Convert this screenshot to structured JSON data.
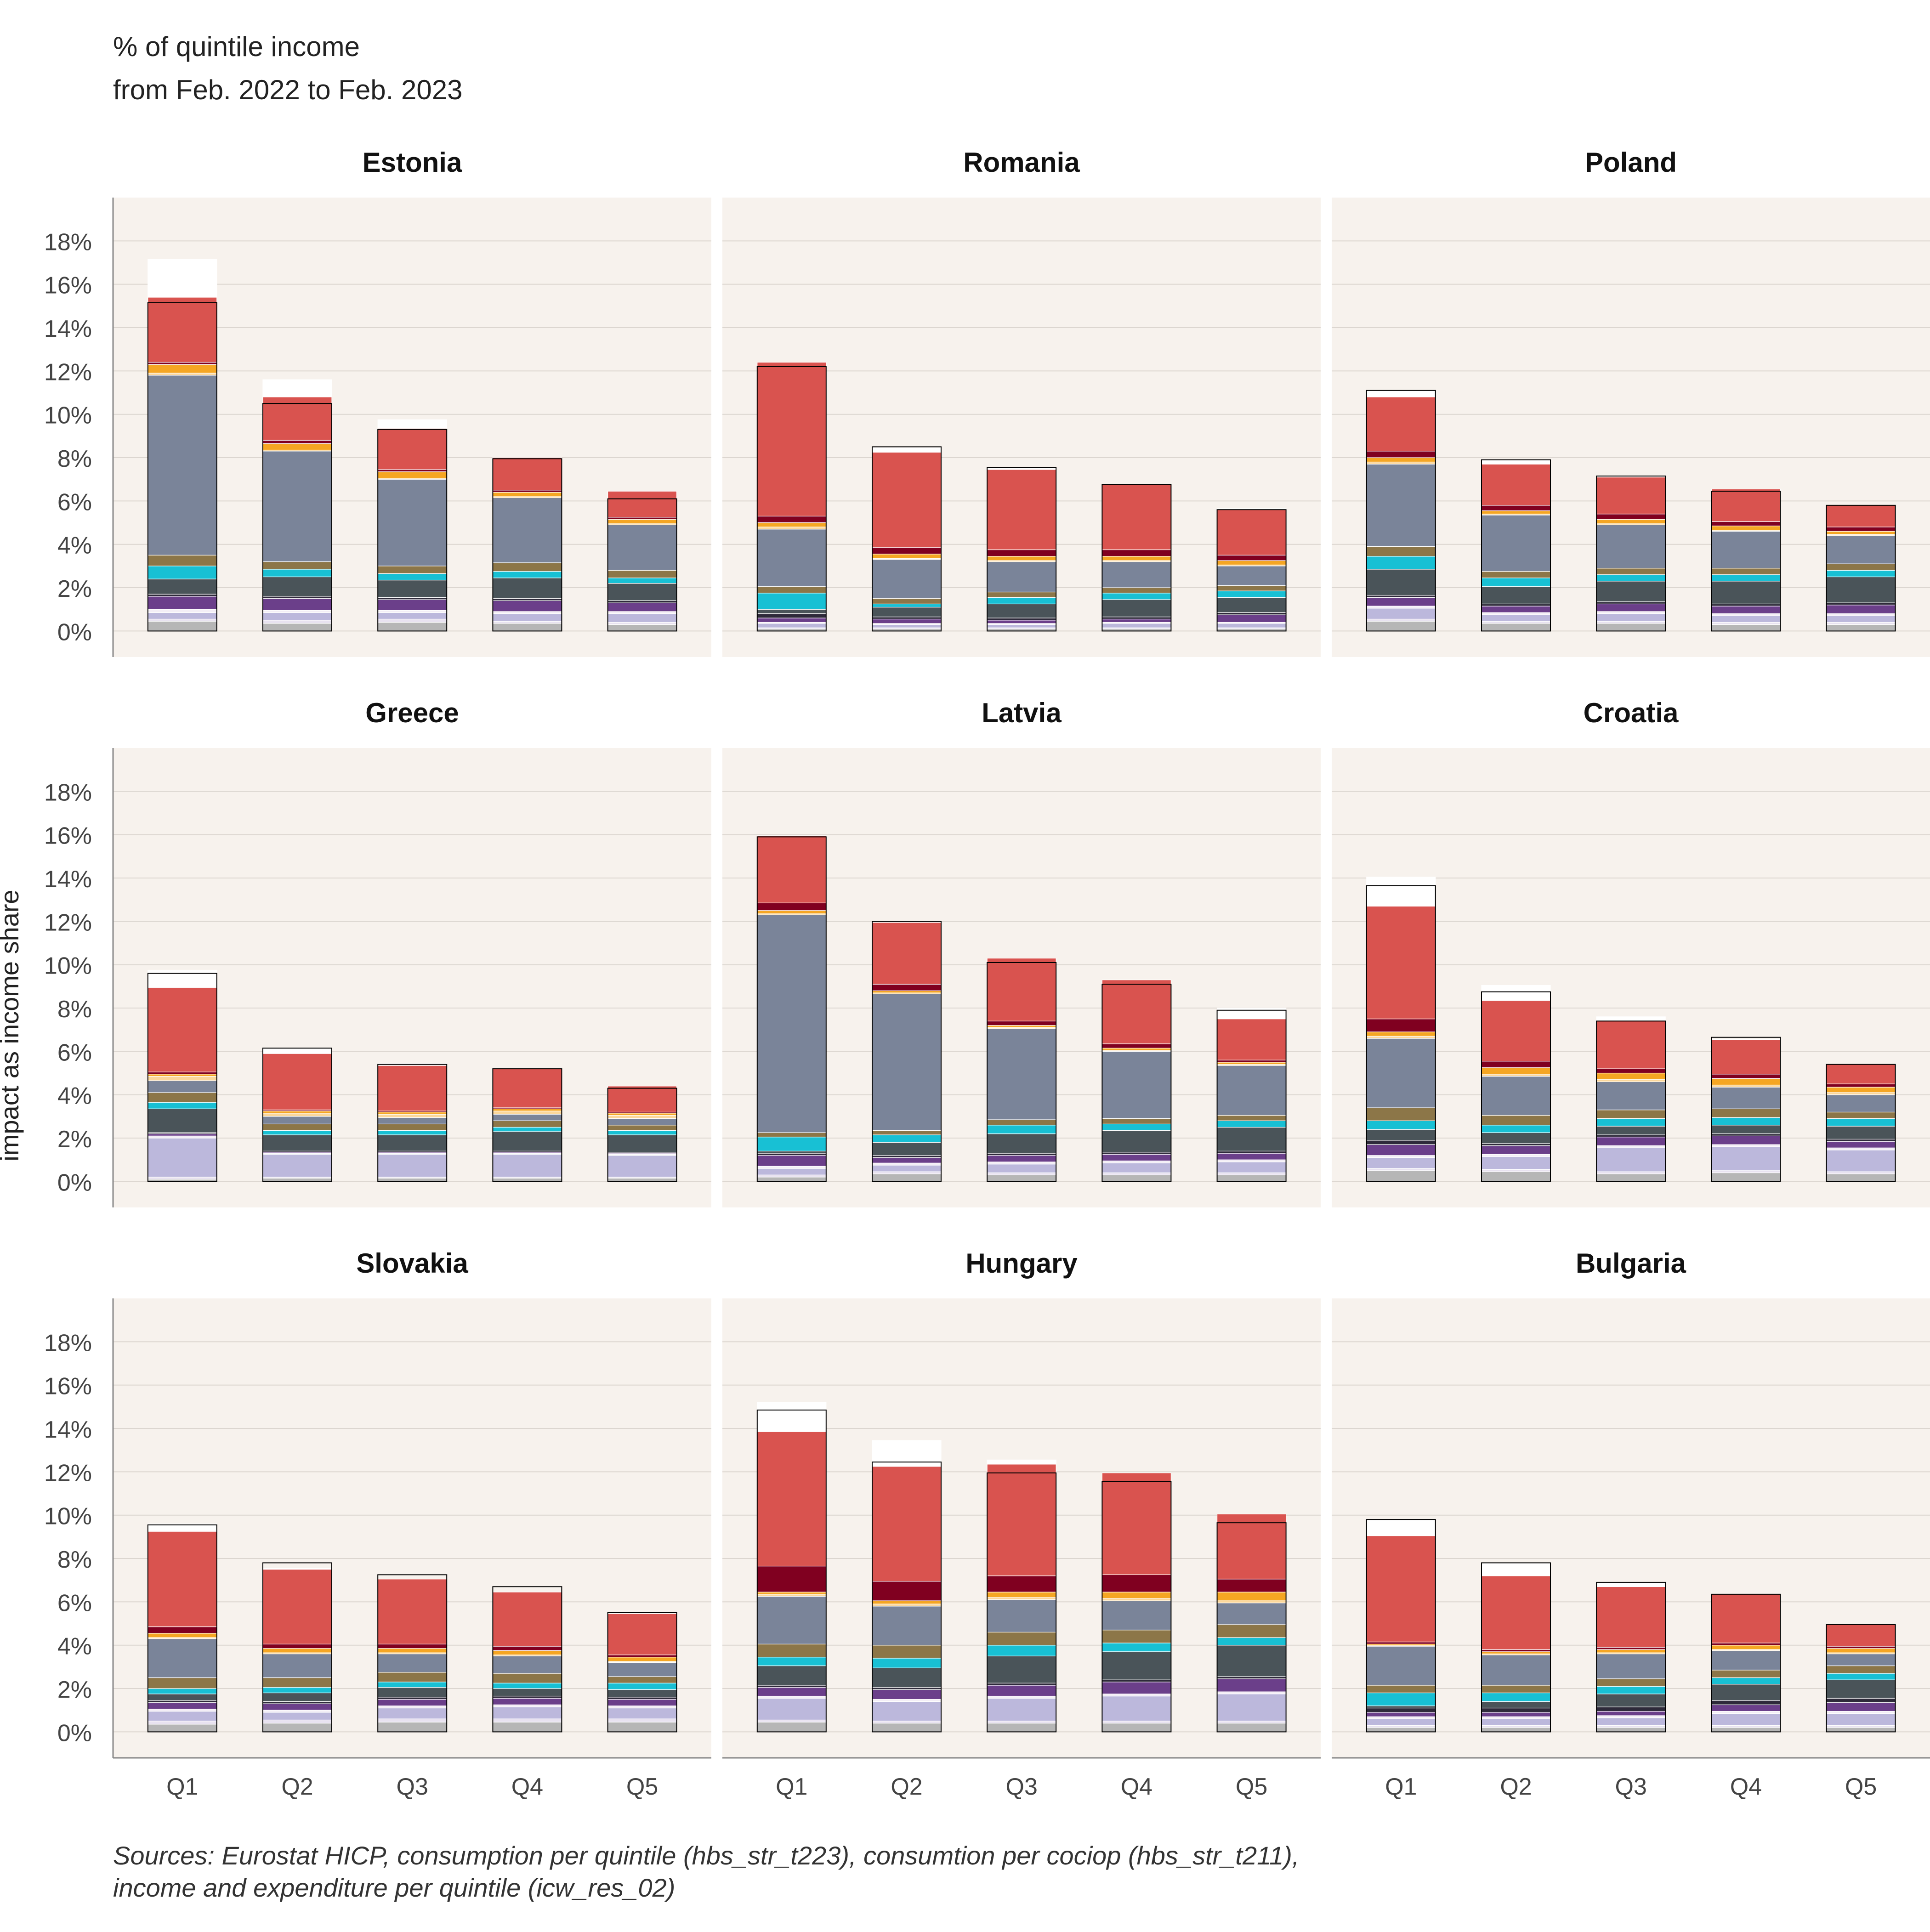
{
  "header": {
    "title_line1": "% of quintile income",
    "title_line2": "from Feb. 2022 to Feb. 2023"
  },
  "yaxis_label": "impact as income share",
  "source_line1": "Sources: Eurostat HICP, consumption per quintile (hbs_str_t223), consumtion per cociop (hbs_str_t211),",
  "source_line2": "income and expenditure per quintile (icw_res_02)",
  "colors": {
    "panel_bg": "#f7f2ed",
    "grid": "#dcd6d0",
    "segments": [
      "#b6b6b6",
      "#e8e2f0",
      "#bcb8dc",
      "#f3eef6",
      "#6b3f8a",
      "#2e2a3a",
      "#4a5459",
      "#18c0d4",
      "#8c7648",
      "#7a8499",
      "#fbd79b",
      "#f5a623",
      "#800020",
      "#d9534f",
      "#ffffff"
    ]
  },
  "chart_data": {
    "type": "bar",
    "layout": "small-multiples 3x3, stacked bars",
    "categories": [
      "Q1",
      "Q2",
      "Q3",
      "Q4",
      "Q5"
    ],
    "ylim": [
      -1.2,
      20
    ],
    "yticks": [
      0,
      2,
      4,
      6,
      8,
      10,
      12,
      14,
      16,
      18
    ],
    "ytick_labels": [
      "0%",
      "2%",
      "4%",
      "6%",
      "8%",
      "10%",
      "12%",
      "14%",
      "16%",
      "18%"
    ],
    "ylabel": "impact as income share",
    "panels": [
      {
        "name": "Estonia",
        "bars": [
          {
            "segments": [
              0.45,
              0.1,
              0.3,
              0.15,
              0.6,
              0.1,
              0.7,
              0.6,
              0.5,
              8.3,
              0.1,
              0.4,
              0.1,
              3.0,
              1.75
            ],
            "total": 15.15
          },
          {
            "segments": [
              0.35,
              0.15,
              0.35,
              0.1,
              0.55,
              0.1,
              0.9,
              0.35,
              0.35,
              5.1,
              0.05,
              0.3,
              0.15,
              2.0,
              0.8
            ],
            "total": 10.5
          },
          {
            "segments": [
              0.4,
              0.15,
              0.3,
              0.1,
              0.5,
              0.1,
              0.8,
              0.3,
              0.35,
              4.0,
              0.05,
              0.3,
              0.1,
              1.9,
              0.4
            ],
            "total": 9.3
          },
          {
            "segments": [
              0.35,
              0.1,
              0.35,
              0.1,
              0.5,
              0.1,
              0.95,
              0.3,
              0.4,
              3.0,
              0.05,
              0.2,
              0.1,
              1.5,
              0.0
            ],
            "total": 7.95
          },
          {
            "segments": [
              0.3,
              0.1,
              0.4,
              0.1,
              0.4,
              0.1,
              0.8,
              0.25,
              0.35,
              2.1,
              0.05,
              0.2,
              0.1,
              1.2,
              0.0
            ],
            "total": 6.1
          }
        ]
      },
      {
        "name": "Romania",
        "bars": [
          {
            "segments": [
              0.1,
              0.05,
              0.2,
              0.05,
              0.2,
              0.2,
              0.2,
              0.75,
              0.3,
              2.65,
              0.1,
              0.2,
              0.3,
              7.1,
              0.0
            ],
            "total": 12.2
          },
          {
            "segments": [
              0.1,
              0.05,
              0.15,
              0.05,
              0.2,
              0.1,
              0.45,
              0.15,
              0.25,
              1.8,
              0.05,
              0.2,
              0.3,
              4.4,
              0.2
            ],
            "total": 8.5
          },
          {
            "segments": [
              0.1,
              0.05,
              0.15,
              0.05,
              0.15,
              0.1,
              0.65,
              0.3,
              0.25,
              1.4,
              0.05,
              0.2,
              0.3,
              3.7,
              0.1
            ],
            "total": 7.55
          },
          {
            "segments": [
              0.1,
              0.05,
              0.2,
              0.05,
              0.15,
              0.1,
              0.8,
              0.3,
              0.25,
              1.2,
              0.05,
              0.2,
              0.3,
              3.0,
              0.0
            ],
            "total": 6.75
          },
          {
            "segments": [
              0.1,
              0.05,
              0.2,
              0.05,
              0.35,
              0.1,
              0.7,
              0.3,
              0.25,
              0.9,
              0.05,
              0.2,
              0.25,
              2.1,
              0.05
            ],
            "total": 5.6
          }
        ]
      },
      {
        "name": "Poland",
        "bars": [
          {
            "segments": [
              0.45,
              0.1,
              0.5,
              0.1,
              0.4,
              0.1,
              1.2,
              0.6,
              0.45,
              3.8,
              0.1,
              0.2,
              0.3,
              2.5,
              0.3
            ],
            "total": 11.1
          },
          {
            "segments": [
              0.35,
              0.1,
              0.3,
              0.1,
              0.3,
              0.1,
              0.8,
              0.4,
              0.3,
              2.6,
              0.05,
              0.15,
              0.25,
              1.9,
              0.2
            ],
            "total": 7.9
          },
          {
            "segments": [
              0.35,
              0.1,
              0.35,
              0.1,
              0.35,
              0.1,
              0.95,
              0.3,
              0.3,
              2.0,
              0.05,
              0.2,
              0.25,
              1.7,
              0.05
            ],
            "total": 7.15
          },
          {
            "segments": [
              0.3,
              0.1,
              0.3,
              0.1,
              0.35,
              0.1,
              1.05,
              0.3,
              0.3,
              1.7,
              0.05,
              0.2,
              0.2,
              1.5,
              0.0
            ],
            "total": 6.45
          },
          {
            "segments": [
              0.3,
              0.1,
              0.3,
              0.1,
              0.4,
              0.1,
              1.2,
              0.3,
              0.3,
              1.3,
              0.05,
              0.15,
              0.2,
              1.0,
              0.0
            ],
            "total": 5.8
          }
        ]
      },
      {
        "name": "Greece",
        "bars": [
          {
            "segments": [
              0.1,
              0.1,
              1.8,
              0.1,
              0.1,
              0.05,
              1.1,
              0.3,
              0.45,
              0.55,
              0.2,
              0.1,
              0.1,
              3.9,
              0.8
            ],
            "total": 9.6
          },
          {
            "segments": [
              0.15,
              0.05,
              1.05,
              0.05,
              0.05,
              0.05,
              0.75,
              0.2,
              0.3,
              0.35,
              0.15,
              0.1,
              0.05,
              2.6,
              0.25
            ],
            "total": 6.15
          },
          {
            "segments": [
              0.15,
              0.05,
              1.05,
              0.05,
              0.05,
              0.05,
              0.75,
              0.2,
              0.3,
              0.3,
              0.15,
              0.1,
              0.05,
              2.1,
              0.1
            ],
            "total": 5.4
          },
          {
            "segments": [
              0.15,
              0.05,
              1.05,
              0.05,
              0.05,
              0.05,
              0.9,
              0.2,
              0.3,
              0.3,
              0.15,
              0.1,
              0.05,
              1.8,
              0.0
            ],
            "total": 5.2
          },
          {
            "segments": [
              0.15,
              0.05,
              1.0,
              0.05,
              0.05,
              0.05,
              0.8,
              0.2,
              0.25,
              0.3,
              0.15,
              0.1,
              0.05,
              1.2,
              0.0
            ],
            "total": 4.3
          }
        ]
      },
      {
        "name": "Latvia",
        "bars": [
          {
            "segments": [
              0.2,
              0.1,
              0.3,
              0.1,
              0.5,
              0.1,
              0.1,
              0.65,
              0.2,
              10.05,
              0.05,
              0.15,
              0.35,
              3.1,
              0.0
            ],
            "total": 15.9
          },
          {
            "segments": [
              0.35,
              0.1,
              0.3,
              0.1,
              0.25,
              0.1,
              0.6,
              0.35,
              0.2,
              6.3,
              0.05,
              0.1,
              0.3,
              2.85,
              0.0
            ],
            "total": 12.0
          },
          {
            "segments": [
              0.3,
              0.1,
              0.4,
              0.1,
              0.3,
              0.1,
              0.9,
              0.4,
              0.25,
              4.2,
              0.05,
              0.1,
              0.2,
              2.9,
              0.0
            ],
            "total": 10.1
          },
          {
            "segments": [
              0.3,
              0.1,
              0.45,
              0.1,
              0.3,
              0.1,
              1.0,
              0.3,
              0.25,
              3.1,
              0.05,
              0.1,
              0.2,
              2.95,
              0.0
            ],
            "total": 9.1
          },
          {
            "segments": [
              0.3,
              0.1,
              0.5,
              0.1,
              0.3,
              0.1,
              1.1,
              0.3,
              0.25,
              2.3,
              0.05,
              0.1,
              0.1,
              1.9,
              0.5
            ],
            "total": 7.9
          }
        ]
      },
      {
        "name": "Croatia",
        "bars": [
          {
            "segments": [
              0.5,
              0.1,
              0.5,
              0.1,
              0.5,
              0.2,
              0.5,
              0.4,
              0.6,
              3.2,
              0.1,
              0.2,
              0.6,
              5.2,
              1.35
            ],
            "total": 13.65
          },
          {
            "segments": [
              0.45,
              0.1,
              0.6,
              0.1,
              0.4,
              0.1,
              0.5,
              0.35,
              0.45,
              1.8,
              0.1,
              0.3,
              0.3,
              2.8,
              0.7
            ],
            "total": 8.75
          },
          {
            "segments": [
              0.35,
              0.1,
              1.1,
              0.1,
              0.4,
              0.1,
              0.4,
              0.35,
              0.4,
              1.3,
              0.1,
              0.3,
              0.2,
              2.2,
              0.2
            ],
            "total": 7.4
          },
          {
            "segments": [
              0.4,
              0.1,
              1.1,
              0.1,
              0.4,
              0.1,
              0.4,
              0.35,
              0.4,
              1.0,
              0.1,
              0.3,
              0.2,
              1.6,
              0.0
            ],
            "total": 6.65
          },
          {
            "segments": [
              0.35,
              0.1,
              1.0,
              0.1,
              0.3,
              0.1,
              0.6,
              0.35,
              0.3,
              0.8,
              0.1,
              0.25,
              0.15,
              0.9,
              0.0
            ],
            "total": 5.4
          }
        ]
      },
      {
        "name": "Slovakia",
        "bars": [
          {
            "segments": [
              0.35,
              0.15,
              0.45,
              0.1,
              0.3,
              0.1,
              0.3,
              0.25,
              0.5,
              1.8,
              0.05,
              0.2,
              0.3,
              4.4,
              0.35
            ],
            "total": 9.55
          },
          {
            "segments": [
              0.4,
              0.15,
              0.35,
              0.1,
              0.3,
              0.1,
              0.4,
              0.25,
              0.45,
              1.1,
              0.05,
              0.2,
              0.2,
              3.45,
              0.05
            ],
            "total": 7.8
          },
          {
            "segments": [
              0.45,
              0.15,
              0.5,
              0.1,
              0.3,
              0.1,
              0.45,
              0.25,
              0.45,
              0.85,
              0.05,
              0.2,
              0.2,
              3.0,
              0.0
            ],
            "total": 7.25
          },
          {
            "segments": [
              0.45,
              0.15,
              0.55,
              0.1,
              0.3,
              0.1,
              0.35,
              0.25,
              0.45,
              0.8,
              0.05,
              0.2,
              0.2,
              2.5,
              0.0
            ],
            "total": 6.7
          },
          {
            "segments": [
              0.45,
              0.15,
              0.5,
              0.1,
              0.3,
              0.1,
              0.35,
              0.3,
              0.3,
              0.65,
              0.05,
              0.2,
              0.1,
              1.9,
              0.0
            ],
            "total": 5.5
          }
        ]
      },
      {
        "name": "Hungary",
        "bars": [
          {
            "segments": [
              0.45,
              0.1,
              1.0,
              0.1,
              0.4,
              0.1,
              0.9,
              0.4,
              0.6,
              2.2,
              0.1,
              0.1,
              1.2,
              6.2,
              1.35
            ],
            "total": 14.85
          },
          {
            "segments": [
              0.4,
              0.1,
              0.9,
              0.1,
              0.45,
              0.1,
              0.9,
              0.45,
              0.6,
              1.8,
              0.1,
              0.15,
              0.9,
              5.3,
              1.2
            ],
            "total": 12.45
          },
          {
            "segments": [
              0.4,
              0.1,
              1.05,
              0.1,
              0.5,
              0.1,
              1.25,
              0.5,
              0.6,
              1.5,
              0.1,
              0.25,
              0.75,
              5.15,
              0.2
            ],
            "total": 11.95
          },
          {
            "segments": [
              0.4,
              0.1,
              1.15,
              0.1,
              0.55,
              0.1,
              1.3,
              0.4,
              0.6,
              1.35,
              0.1,
              0.3,
              0.8,
              4.7,
              0.0
            ],
            "total": 11.55
          },
          {
            "segments": [
              0.4,
              0.1,
              1.25,
              0.1,
              0.6,
              0.1,
              1.45,
              0.35,
              0.6,
              1.0,
              0.1,
              0.4,
              0.6,
              3.0,
              0.0
            ],
            "total": 9.65
          }
        ]
      },
      {
        "name": "Bulgaria",
        "bars": [
          {
            "segments": [
              0.2,
              0.1,
              0.3,
              0.1,
              0.2,
              0.2,
              0.1,
              0.6,
              0.35,
              1.8,
              0.05,
              0.05,
              0.1,
              4.9,
              0.75
            ],
            "total": 9.8
          },
          {
            "segments": [
              0.2,
              0.1,
              0.3,
              0.1,
              0.2,
              0.2,
              0.3,
              0.4,
              0.35,
              1.4,
              0.05,
              0.1,
              0.1,
              3.4,
              0.6
            ],
            "total": 7.8
          },
          {
            "segments": [
              0.2,
              0.1,
              0.35,
              0.1,
              0.2,
              0.2,
              0.6,
              0.35,
              0.35,
              1.15,
              0.05,
              0.15,
              0.1,
              2.8,
              0.2
            ],
            "total": 6.9
          },
          {
            "segments": [
              0.2,
              0.1,
              0.55,
              0.1,
              0.3,
              0.2,
              0.75,
              0.3,
              0.35,
              0.9,
              0.05,
              0.2,
              0.1,
              2.25,
              0.0
            ],
            "total": 6.35
          },
          {
            "segments": [
              0.2,
              0.1,
              0.55,
              0.1,
              0.4,
              0.2,
              0.85,
              0.3,
              0.35,
              0.55,
              0.05,
              0.2,
              0.1,
              1.0,
              0.0
            ],
            "total": 4.95
          }
        ]
      }
    ]
  }
}
